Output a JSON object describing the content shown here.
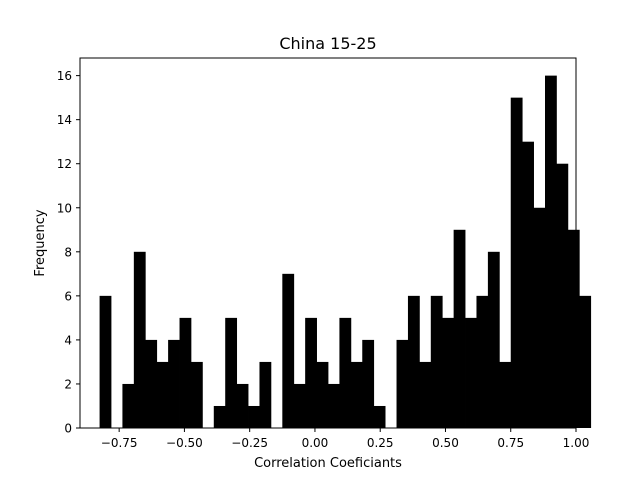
{
  "chart_data": {
    "type": "bar",
    "subtype": "histogram",
    "title": "China 15-25",
    "xlabel": "Correlation Coeficiants",
    "ylabel": "Frequency",
    "xlim": [
      -0.9,
      1.0
    ],
    "ylim": [
      0,
      16.8
    ],
    "xticks": [
      {
        "value": -0.75,
        "label": "−0.75"
      },
      {
        "value": -0.5,
        "label": "−0.50"
      },
      {
        "value": -0.25,
        "label": "−0.25"
      },
      {
        "value": 0.0,
        "label": "0.00"
      },
      {
        "value": 0.25,
        "label": "0.25"
      },
      {
        "value": 0.5,
        "label": "0.50"
      },
      {
        "value": 0.75,
        "label": "0.75"
      },
      {
        "value": 1.0,
        "label": "1.00"
      }
    ],
    "yticks": [
      {
        "value": 0,
        "label": "0"
      },
      {
        "value": 2,
        "label": "2"
      },
      {
        "value": 4,
        "label": "4"
      },
      {
        "value": 6,
        "label": "6"
      },
      {
        "value": 8,
        "label": "8"
      },
      {
        "value": 10,
        "label": "10"
      },
      {
        "value": 12,
        "label": "12"
      },
      {
        "value": 14,
        "label": "14"
      },
      {
        "value": 16,
        "label": "16"
      }
    ],
    "bin_start": -0.825,
    "bin_width": 0.04375,
    "counts": [
      6,
      0,
      2,
      8,
      4,
      3,
      4,
      5,
      3,
      0,
      1,
      5,
      2,
      1,
      3,
      0,
      7,
      2,
      5,
      3,
      2,
      5,
      3,
      4,
      1,
      0,
      4,
      6,
      3,
      6,
      5,
      9,
      5,
      6,
      8,
      3,
      15,
      13,
      10,
      16,
      12,
      9,
      6
    ],
    "bar_color": "#000000",
    "grid": false,
    "legend": "none"
  }
}
